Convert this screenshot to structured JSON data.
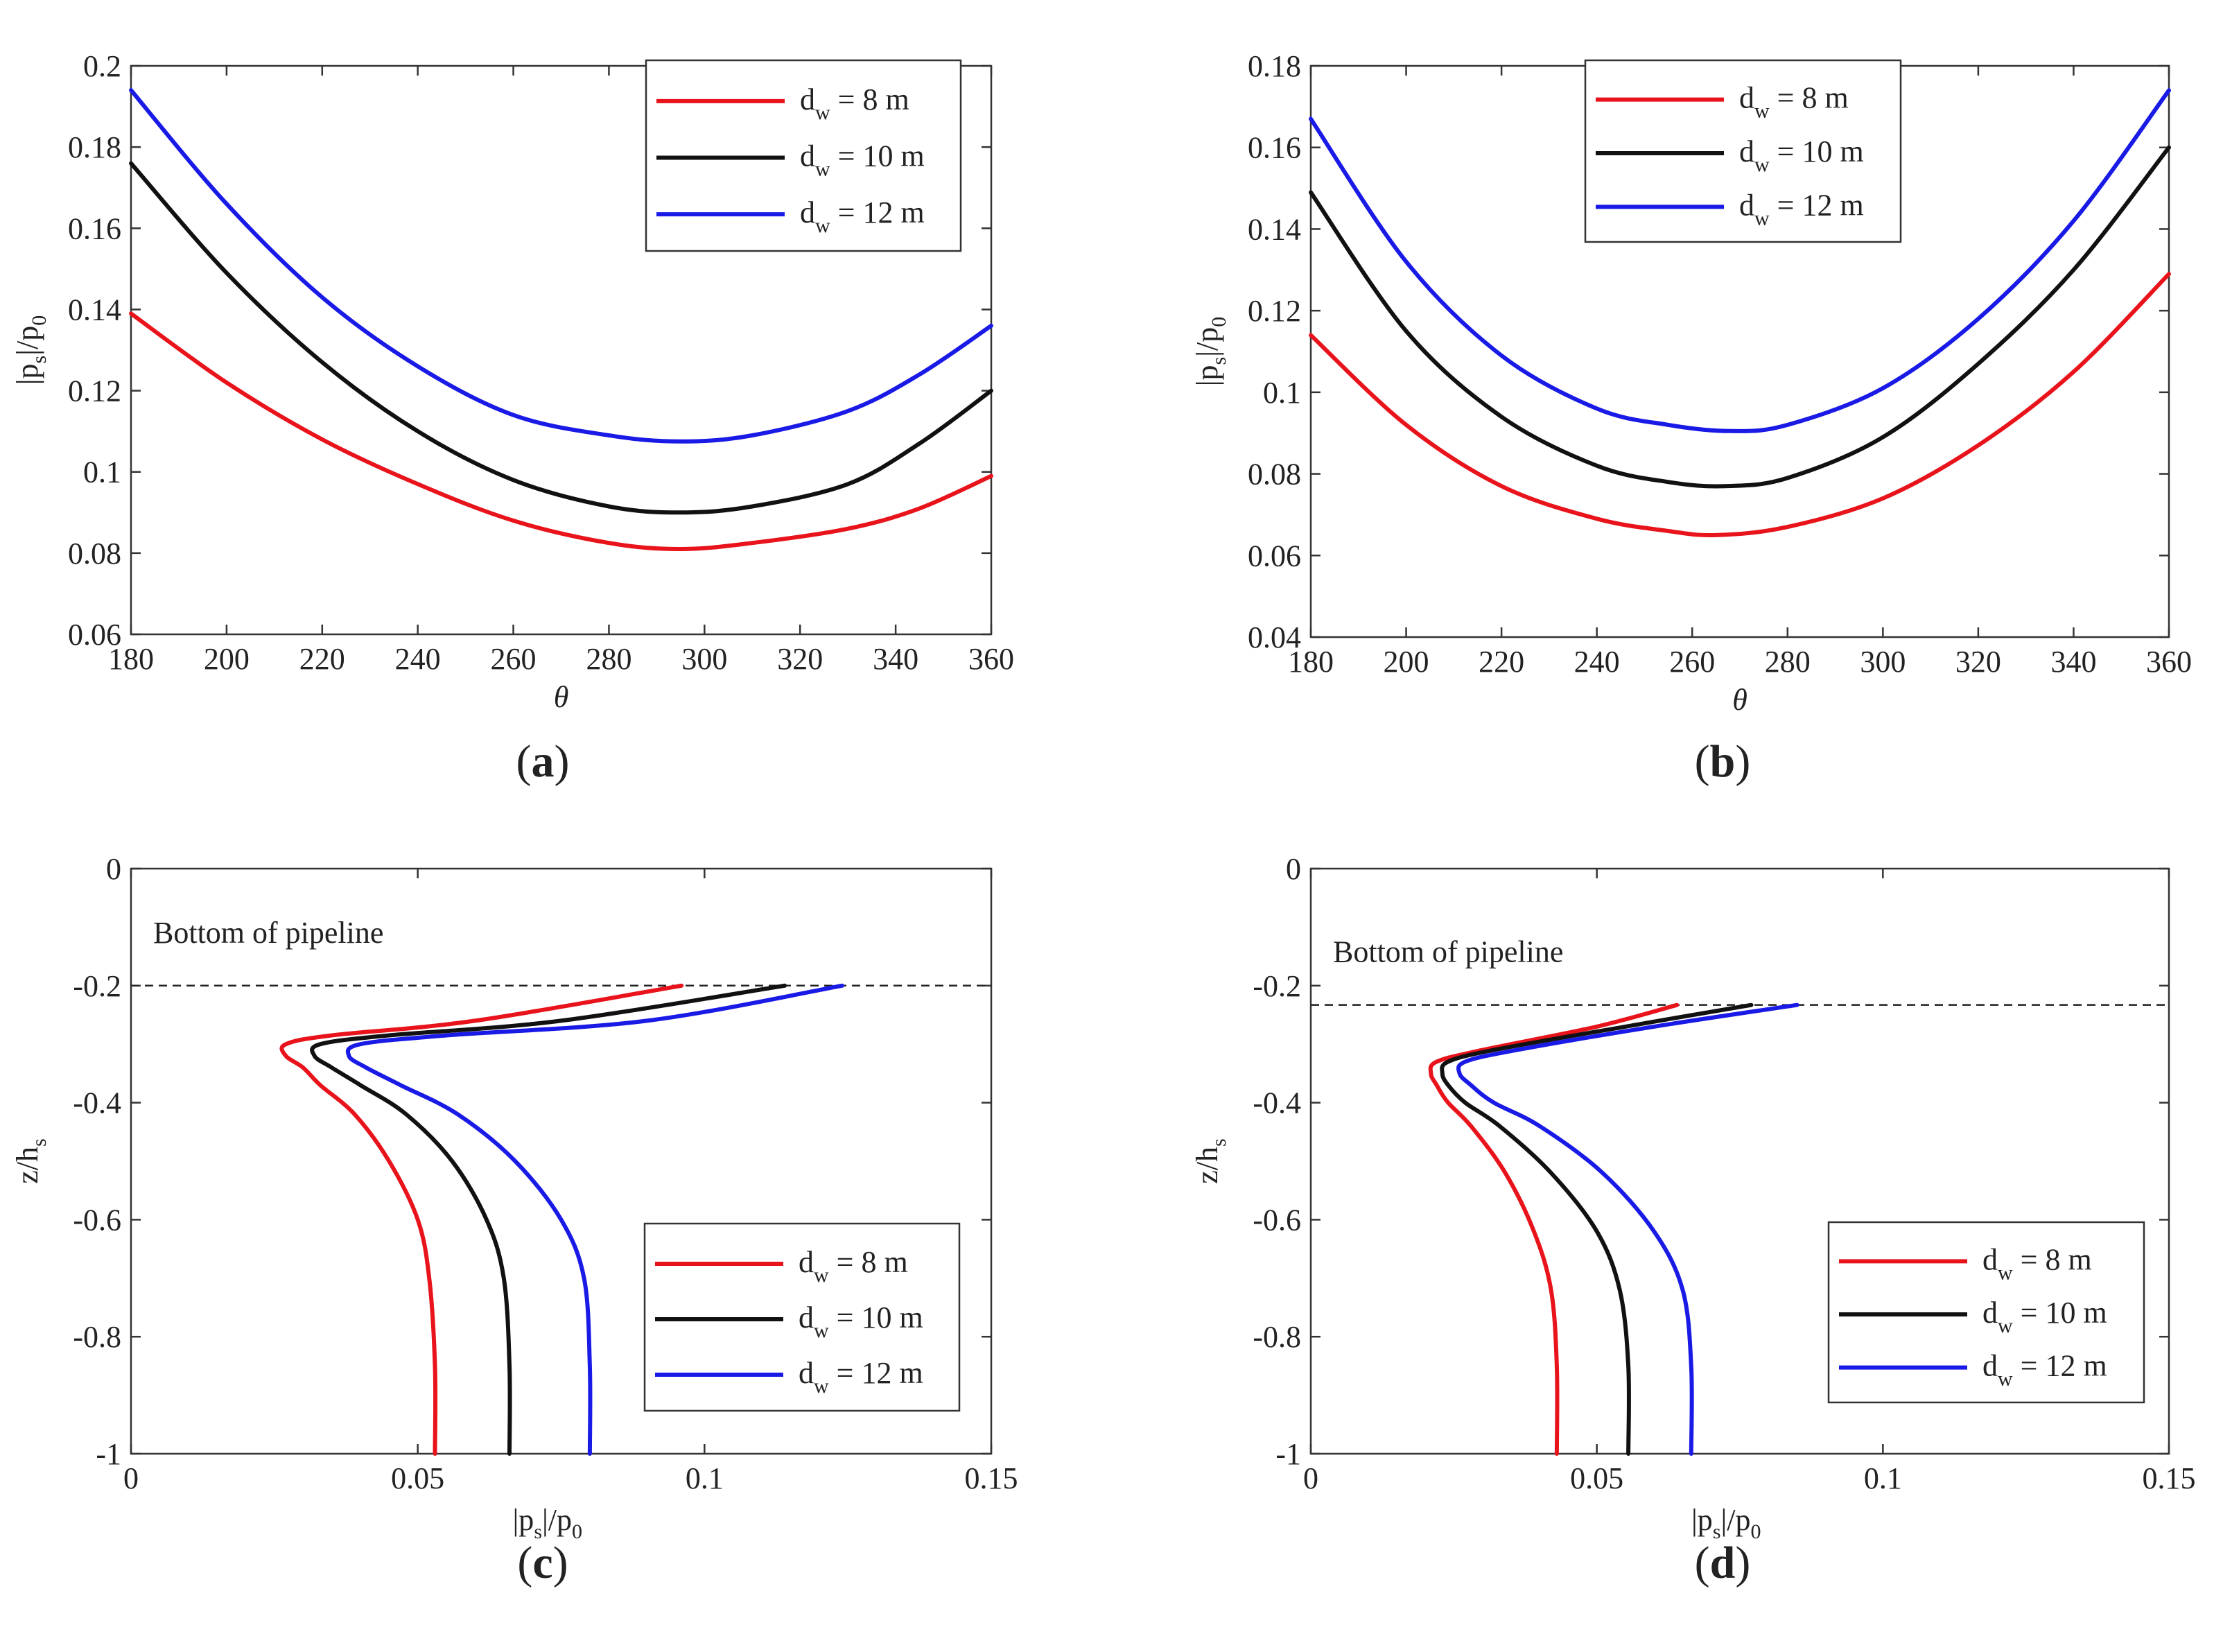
{
  "chart_data": [
    {
      "panel": "a",
      "type": "line",
      "label": "(a)",
      "label_letter": "a",
      "xlabel": "θ",
      "ylabel": "|p_s|/p_0",
      "xlim": [
        180,
        360
      ],
      "ylim": [
        0.06,
        0.2
      ],
      "xticks": [
        "180",
        "200",
        "220",
        "240",
        "260",
        "280",
        "300",
        "320",
        "340",
        "360"
      ],
      "yticks": [
        "0.06",
        "0.08",
        "0.1",
        "0.12",
        "0.14",
        "0.16",
        "0.18",
        "0.2"
      ],
      "legend_position": "top-right",
      "series": [
        {
          "name": "d_w = 8 m",
          "color": "#e8131b",
          "x": [
            180,
            200,
            220,
            240,
            260,
            280,
            295,
            310,
            330,
            345,
            360
          ],
          "y": [
            0.139,
            0.122,
            0.108,
            0.097,
            0.088,
            0.0825,
            0.081,
            0.0825,
            0.086,
            0.091,
            0.099
          ]
        },
        {
          "name": "d_w = 10 m",
          "color": "#111111",
          "x": [
            180,
            200,
            220,
            240,
            260,
            280,
            295,
            310,
            330,
            345,
            360
          ],
          "y": [
            0.176,
            0.149,
            0.127,
            0.11,
            0.098,
            0.0915,
            0.09,
            0.0915,
            0.097,
            0.107,
            0.12
          ]
        },
        {
          "name": "d_w = 12 m",
          "color": "#1a1ae6",
          "x": [
            180,
            200,
            220,
            240,
            260,
            280,
            295,
            310,
            330,
            345,
            360
          ],
          "y": [
            0.194,
            0.166,
            0.143,
            0.126,
            0.114,
            0.109,
            0.1075,
            0.109,
            0.115,
            0.124,
            0.136
          ]
        }
      ]
    },
    {
      "panel": "b",
      "type": "line",
      "label": "(b)",
      "label_letter": "b",
      "xlabel": "θ",
      "ylabel": "|p_s|/p_0",
      "xlim": [
        180,
        360
      ],
      "ylim": [
        0.04,
        0.18
      ],
      "xticks": [
        "180",
        "200",
        "220",
        "240",
        "260",
        "280",
        "300",
        "320",
        "340",
        "360"
      ],
      "yticks": [
        "0.04",
        "0.06",
        "0.08",
        "0.1",
        "0.12",
        "0.14",
        "0.16",
        "0.18"
      ],
      "legend_position": "top-left",
      "series": [
        {
          "name": "d_w = 8 m",
          "color": "#e8131b",
          "x": [
            180,
            200,
            220,
            240,
            255,
            265,
            280,
            300,
            320,
            340,
            360
          ],
          "y": [
            0.114,
            0.092,
            0.077,
            0.069,
            0.066,
            0.065,
            0.067,
            0.074,
            0.087,
            0.105,
            0.129
          ]
        },
        {
          "name": "d_w = 10 m",
          "color": "#111111",
          "x": [
            180,
            200,
            220,
            240,
            255,
            267,
            280,
            300,
            320,
            340,
            360
          ],
          "y": [
            0.149,
            0.115,
            0.094,
            0.082,
            0.078,
            0.077,
            0.079,
            0.089,
            0.107,
            0.13,
            0.16
          ]
        },
        {
          "name": "d_w = 12 m",
          "color": "#1a1ae6",
          "x": [
            180,
            200,
            220,
            240,
            255,
            268,
            280,
            300,
            320,
            340,
            360
          ],
          "y": [
            0.167,
            0.132,
            0.109,
            0.096,
            0.092,
            0.0905,
            0.092,
            0.101,
            0.118,
            0.142,
            0.174
          ]
        }
      ]
    },
    {
      "panel": "c",
      "type": "line",
      "label": "(c)",
      "label_letter": "c",
      "xlabel": "|p_s|/p_0",
      "ylabel": "z/h_s",
      "xlim": [
        0,
        0.15
      ],
      "ylim": [
        -1,
        0
      ],
      "xticks": [
        "0",
        "0.05",
        "0.1",
        "0.15"
      ],
      "yticks": [
        "-1",
        "-0.8",
        "-0.6",
        "-0.4",
        "-0.2",
        "0"
      ],
      "annotation": "Bottom of pipeline",
      "reference_line_y": -0.2,
      "legend_position": "bottom-right",
      "series": [
        {
          "name": "d_w = 8 m",
          "color": "#e8131b",
          "x": [
            0.096,
            0.06,
            0.035,
            0.027,
            0.027,
            0.03,
            0.033,
            0.039,
            0.045,
            0.05,
            0.052,
            0.053,
            0.053
          ],
          "y": [
            -0.2,
            -0.26,
            -0.285,
            -0.3,
            -0.32,
            -0.34,
            -0.37,
            -0.42,
            -0.5,
            -0.6,
            -0.7,
            -0.85,
            -1.0
          ]
        },
        {
          "name": "d_w = 10 m",
          "color": "#111111",
          "x": [
            0.114,
            0.075,
            0.045,
            0.033,
            0.032,
            0.035,
            0.04,
            0.048,
            0.056,
            0.062,
            0.065,
            0.066,
            0.066
          ],
          "y": [
            -0.2,
            -0.26,
            -0.285,
            -0.3,
            -0.32,
            -0.34,
            -0.37,
            -0.42,
            -0.5,
            -0.6,
            -0.7,
            -0.85,
            -1.0
          ]
        },
        {
          "name": "d_w = 12 m",
          "color": "#1a1ae6",
          "x": [
            0.124,
            0.09,
            0.055,
            0.04,
            0.038,
            0.041,
            0.047,
            0.057,
            0.067,
            0.075,
            0.079,
            0.08,
            0.08
          ],
          "y": [
            -0.2,
            -0.26,
            -0.285,
            -0.3,
            -0.32,
            -0.34,
            -0.37,
            -0.42,
            -0.5,
            -0.6,
            -0.7,
            -0.85,
            -1.0
          ]
        }
      ]
    },
    {
      "panel": "d",
      "type": "line",
      "label": "(d)",
      "label_letter": "d",
      "xlabel": "|p_s|/p_0",
      "ylabel": "z/h_s",
      "xlim": [
        0,
        0.15
      ],
      "ylim": [
        -1,
        0
      ],
      "xticks": [
        "0",
        "0.05",
        "0.1",
        "0.15"
      ],
      "yticks": [
        "-1",
        "-0.8",
        "-0.6",
        "-0.4",
        "-0.2",
        "0"
      ],
      "annotation": "Bottom of pipeline",
      "reference_line_y": -0.233,
      "legend_position": "bottom-right",
      "series": [
        {
          "name": "d_w = 8 m",
          "color": "#e8131b",
          "x": [
            0.064,
            0.05,
            0.03,
            0.022,
            0.021,
            0.022,
            0.024,
            0.028,
            0.034,
            0.039,
            0.042,
            0.043,
            0.043
          ],
          "y": [
            -0.233,
            -0.27,
            -0.31,
            -0.33,
            -0.35,
            -0.37,
            -0.4,
            -0.44,
            -0.52,
            -0.62,
            -0.72,
            -0.85,
            -1.0
          ]
        },
        {
          "name": "d_w = 10 m",
          "color": "#111111",
          "x": [
            0.077,
            0.055,
            0.032,
            0.024,
            0.023,
            0.024,
            0.027,
            0.033,
            0.042,
            0.05,
            0.054,
            0.0555,
            0.0555
          ],
          "y": [
            -0.233,
            -0.27,
            -0.31,
            -0.33,
            -0.35,
            -0.37,
            -0.4,
            -0.44,
            -0.52,
            -0.62,
            -0.72,
            -0.85,
            -1.0
          ]
        },
        {
          "name": "d_w = 12 m",
          "color": "#1a1ae6",
          "x": [
            0.085,
            0.06,
            0.036,
            0.027,
            0.026,
            0.028,
            0.032,
            0.04,
            0.051,
            0.06,
            0.065,
            0.0665,
            0.0665
          ],
          "y": [
            -0.233,
            -0.27,
            -0.31,
            -0.33,
            -0.35,
            -0.37,
            -0.4,
            -0.44,
            -0.52,
            -0.62,
            -0.72,
            -0.85,
            -1.0
          ]
        }
      ]
    }
  ],
  "legend": {
    "entries": [
      {
        "base": "d",
        "sub": "w",
        "rest": " = 8 m"
      },
      {
        "base": "d",
        "sub": "w",
        "rest": " = 10 m"
      },
      {
        "base": "d",
        "sub": "w",
        "rest": " = 12 m"
      }
    ]
  },
  "axis_labels": {
    "theta": "θ",
    "ps_p0": {
      "part1": "|p",
      "sub1": "s",
      "part2": "|/p",
      "sub2": "0"
    },
    "z_hs": {
      "part1": "z/h",
      "sub1": "s"
    }
  }
}
